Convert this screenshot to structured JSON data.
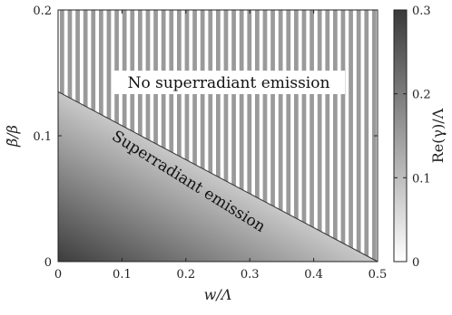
{
  "chart_data": {
    "type": "heatmap",
    "title": "",
    "xlabel": "w/Λ",
    "ylabel": "β̃/β",
    "xlim": [
      0,
      0.5
    ],
    "ylim": [
      0,
      0.2
    ],
    "x_ticks": [
      "0",
      "0.1",
      "0.2",
      "0.3",
      "0.4",
      "0.5"
    ],
    "y_ticks": [
      "0",
      "0.1",
      "0.2"
    ],
    "boundary": {
      "points": [
        [
          0,
          0.135
        ],
        [
          0.5,
          0
        ]
      ]
    },
    "regions": {
      "upper": "No superradiant emission",
      "lower": "Superradiant emission"
    },
    "colorbar": {
      "label": "Re(γ)/Λ",
      "range": [
        0,
        0.3
      ],
      "ticks": [
        "0",
        "0.1",
        "0.2",
        "0.3"
      ],
      "colormap": "gray"
    }
  },
  "colors": {
    "stripe": "#9a9a9a",
    "dark": "#3a3a3a",
    "light": "#ffffff",
    "axis": "#222222"
  }
}
